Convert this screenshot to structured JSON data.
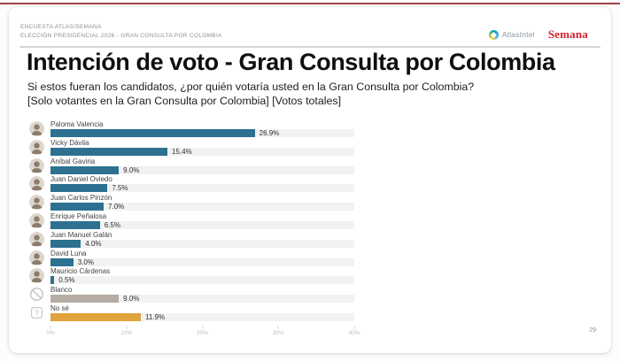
{
  "topbar": {
    "accent_color": "#a04444"
  },
  "header": {
    "kicker_line1": "ENCUESTA ATLAS/SEMANA",
    "kicker_line2": "ELECCIÓN PRESIDENCIAL 2026 - GRAN CONSULTA POR COLOMBIA",
    "brands": {
      "atlasintel": "AtlasIntel",
      "semana": "Semana"
    }
  },
  "chart_data": {
    "type": "bar",
    "orientation": "horizontal",
    "title": "Intención de voto - Gran Consulta por Colombia",
    "subtitle_line1": "Si estos fueran los candidatos, ¿por quién votaría usted en la Gran Consulta por Colombia?",
    "subtitle_line2": "[Solo votantes en la Gran Consulta por Colombia] [Votos totales]",
    "categories": [
      "Paloma Valencia",
      "Vicky Dávila",
      "Aníbal Gaviria",
      "Juan Daniel Oviedo",
      "Juan Carlos Pinzón",
      "Enrique Peñalosa",
      "Juan Manuel Galán",
      "David Luna",
      "Mauricio Cárdenas",
      "Blanco",
      "No sé"
    ],
    "values": [
      26.9,
      15.4,
      9.0,
      7.5,
      7.0,
      6.5,
      4.0,
      3.0,
      0.5,
      9.0,
      11.9
    ],
    "value_labels": [
      "26.9%",
      "15.4%",
      "9.0%",
      "7.5%",
      "7.0%",
      "6.5%",
      "4.0%",
      "3.0%",
      "0.5%",
      "9.0%",
      "11.9%"
    ],
    "bar_colors": [
      "#2d7090",
      "#2d7090",
      "#2d7090",
      "#2d7090",
      "#2d7090",
      "#2d7090",
      "#2d7090",
      "#2d7090",
      "#2d7090",
      "#b5aca3",
      "#e1a33c"
    ],
    "avatar_types": [
      "photo",
      "photo",
      "photo",
      "photo",
      "photo",
      "photo",
      "photo",
      "photo",
      "photo",
      "blanco",
      "question"
    ],
    "x_ticks": [
      "0%",
      "10%",
      "20%",
      "30%",
      "40%"
    ],
    "xlim": [
      0,
      40
    ],
    "track_color": "#f2f2f2",
    "grid": false,
    "legend": false
  },
  "footer": {
    "page_number": "29"
  }
}
